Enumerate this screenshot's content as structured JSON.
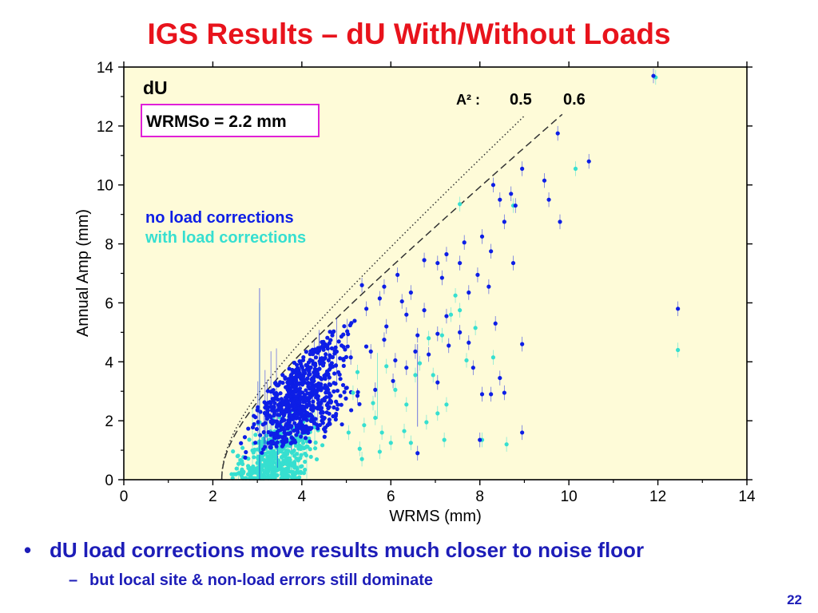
{
  "slide": {
    "title": "IGS Results – dU With/Without Loads",
    "bullet_symbol": "•",
    "bullet": "dU load corrections move results much closer to noise floor",
    "sub_symbol": "–",
    "sub_bullet": "but local site & non-load errors still dominate",
    "page_number": "22"
  },
  "chart_data": {
    "type": "scatter",
    "panel_label": "dU",
    "wrms_box": "WRMSo = 2.2 mm",
    "xlabel": "WRMS (mm)",
    "ylabel": "Annual Amp (mm)",
    "xlim": [
      0,
      14
    ],
    "ylim": [
      0,
      14
    ],
    "xticks": [
      0,
      2,
      4,
      6,
      8,
      10,
      12,
      14
    ],
    "yticks": [
      0,
      2,
      4,
      6,
      8,
      10,
      12,
      14
    ],
    "grid": false,
    "legend_placement": "left",
    "legend": [
      "no load corrections",
      "with load corrections"
    ],
    "a2_label": "A² :",
    "wrms0": 2.2,
    "curves": [
      {
        "a2": "0.5",
        "style": "dotted",
        "x_end": 9.0
      },
      {
        "a2": "0.6",
        "style": "dashed",
        "x_end": 9.85
      }
    ],
    "series": [
      {
        "name": "no load corrections",
        "color": "#0d1ee6",
        "points": [
          [
            11.9,
            13.7
          ],
          [
            9.75,
            11.75
          ],
          [
            10.45,
            10.8
          ],
          [
            8.95,
            10.55
          ],
          [
            9.45,
            10.15
          ],
          [
            8.3,
            10.0
          ],
          [
            8.7,
            9.7
          ],
          [
            9.55,
            9.5
          ],
          [
            8.8,
            9.3
          ],
          [
            9.8,
            8.75
          ],
          [
            8.45,
            9.5
          ],
          [
            8.55,
            8.75
          ],
          [
            8.05,
            8.25
          ],
          [
            7.65,
            8.05
          ],
          [
            7.25,
            7.65
          ],
          [
            7.05,
            7.35
          ],
          [
            6.75,
            7.45
          ],
          [
            6.45,
            6.35
          ],
          [
            6.15,
            6.95
          ],
          [
            5.85,
            6.55
          ],
          [
            6.75,
            5.75
          ],
          [
            7.25,
            5.55
          ],
          [
            7.05,
            4.95
          ],
          [
            7.55,
            5.0
          ],
          [
            7.3,
            4.55
          ],
          [
            7.75,
            4.65
          ],
          [
            8.2,
            6.55
          ],
          [
            8.75,
            7.35
          ],
          [
            8.95,
            4.6
          ],
          [
            8.35,
            5.3
          ],
          [
            7.75,
            6.35
          ],
          [
            6.85,
            4.25
          ],
          [
            6.55,
            4.35
          ],
          [
            6.35,
            3.8
          ],
          [
            7.05,
            3.3
          ],
          [
            7.85,
            3.8
          ],
          [
            8.45,
            3.45
          ],
          [
            8.25,
            2.9
          ],
          [
            8.55,
            2.95
          ],
          [
            8.05,
            2.9
          ],
          [
            8.0,
            1.35
          ],
          [
            8.95,
            1.6
          ],
          [
            12.45,
            5.8
          ],
          [
            6.05,
            3.35
          ],
          [
            5.25,
            2.85
          ],
          [
            5.65,
            3.05
          ],
          [
            6.6,
            0.9
          ],
          [
            6.35,
            5.6
          ],
          [
            6.6,
            4.9
          ],
          [
            5.9,
            5.2
          ],
          [
            5.45,
            5.8
          ],
          [
            5.35,
            6.6
          ],
          [
            5.75,
            6.15
          ],
          [
            6.1,
            4.05
          ],
          [
            5.55,
            4.35
          ],
          [
            5.1,
            4.15
          ],
          [
            5.85,
            4.75
          ],
          [
            6.25,
            6.05
          ],
          [
            7.15,
            6.85
          ],
          [
            7.95,
            6.95
          ],
          [
            8.25,
            7.75
          ],
          [
            7.55,
            7.35
          ]
        ]
      },
      {
        "name": "with load corrections",
        "color": "#36dfd0",
        "points": [
          [
            11.95,
            13.65
          ],
          [
            10.15,
            10.55
          ],
          [
            8.75,
            9.3
          ],
          [
            7.55,
            9.35
          ],
          [
            7.45,
            6.25
          ],
          [
            7.55,
            5.75
          ],
          [
            7.9,
            5.15
          ],
          [
            7.35,
            5.6
          ],
          [
            7.15,
            4.9
          ],
          [
            6.85,
            4.8
          ],
          [
            6.65,
            3.95
          ],
          [
            6.55,
            3.55
          ],
          [
            6.1,
            3.05
          ],
          [
            6.35,
            2.55
          ],
          [
            7.25,
            2.55
          ],
          [
            7.05,
            2.25
          ],
          [
            6.8,
            1.95
          ],
          [
            7.2,
            1.35
          ],
          [
            6.45,
            1.25
          ],
          [
            8.6,
            1.2
          ],
          [
            8.05,
            1.35
          ],
          [
            8.3,
            4.15
          ],
          [
            12.45,
            4.4
          ],
          [
            5.65,
            2.1
          ],
          [
            5.8,
            1.6
          ],
          [
            6.0,
            1.25
          ],
          [
            5.35,
            0.7
          ],
          [
            5.6,
            2.6
          ],
          [
            5.15,
            2.95
          ],
          [
            5.05,
            1.6
          ],
          [
            5.4,
            1.85
          ],
          [
            6.3,
            1.65
          ],
          [
            6.95,
            3.55
          ],
          [
            7.7,
            4.05
          ],
          [
            5.25,
            3.65
          ],
          [
            5.9,
            3.85
          ],
          [
            5.3,
            1.05
          ],
          [
            5.75,
            0.95
          ]
        ]
      }
    ]
  }
}
